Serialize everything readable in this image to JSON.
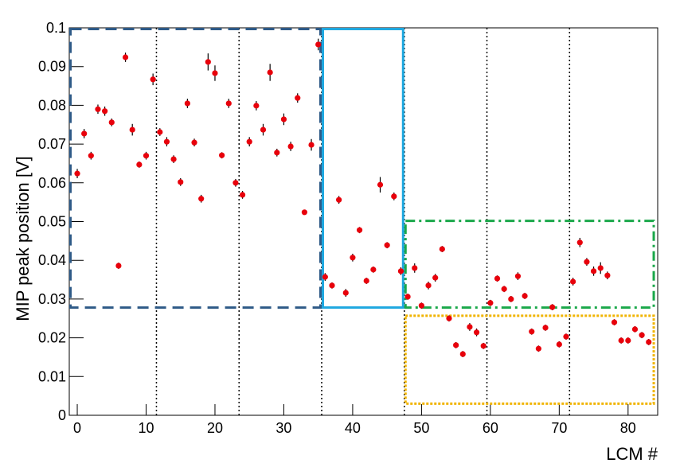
{
  "chart_data": {
    "type": "scatter",
    "x_label": "LCM #",
    "y_label": "MIP peak position   [V]",
    "xlim": [
      -1.16,
      84.3
    ],
    "ylim": [
      0,
      0.1
    ],
    "xticks": [
      0,
      10,
      20,
      30,
      40,
      50,
      60,
      70,
      80
    ],
    "yticks": [
      0,
      0.01,
      0.02,
      0.03,
      0.04,
      0.05,
      0.06,
      0.07,
      0.08,
      0.09,
      0.1
    ],
    "color": "#e8000b",
    "error_color": "#000000",
    "series": [
      {
        "name": "MIP peak",
        "color": "#e8000b",
        "x": [
          0,
          1,
          2,
          3,
          4,
          5,
          6,
          7,
          8,
          9,
          10,
          11,
          12,
          13,
          14,
          15,
          16,
          17,
          18,
          19,
          20,
          21,
          22,
          23,
          24,
          25,
          26,
          27,
          28,
          29,
          30,
          31,
          32,
          33,
          34,
          35,
          36,
          37,
          38,
          39,
          40,
          41,
          42,
          43,
          44,
          45,
          46,
          47,
          48,
          49,
          50,
          51,
          52,
          53,
          54,
          55,
          56,
          57,
          58,
          59,
          60,
          61,
          62,
          63,
          64,
          65,
          66,
          67,
          68,
          69,
          70,
          71,
          72,
          73,
          74,
          75,
          76,
          77,
          78,
          79,
          80,
          81,
          82,
          83
        ],
        "values": [
          0.0624,
          0.0727,
          0.067,
          0.079,
          0.0785,
          0.0756,
          0.0386,
          0.0924,
          0.0737,
          0.0647,
          0.067,
          0.0867,
          0.0731,
          0.0706,
          0.0661,
          0.0602,
          0.0805,
          0.0704,
          0.0559,
          0.0912,
          0.0883,
          0.0671,
          0.0805,
          0.06,
          0.0569,
          0.0706,
          0.0799,
          0.0737,
          0.0885,
          0.0678,
          0.0764,
          0.0694,
          0.0819,
          0.0524,
          0.0698,
          0.0957,
          0.0357,
          0.0335,
          0.0556,
          0.0316,
          0.0407,
          0.0478,
          0.0347,
          0.0376,
          0.0595,
          0.0439,
          0.0565,
          0.0372,
          0.0306,
          0.038,
          0.0283,
          0.0335,
          0.0355,
          0.0429,
          0.025,
          0.0181,
          0.0158,
          0.0228,
          0.0214,
          0.0179,
          0.029,
          0.0353,
          0.0326,
          0.03,
          0.0359,
          0.0308,
          0.0216,
          0.0172,
          0.0226,
          0.0279,
          0.0183,
          0.0203,
          0.0345,
          0.0446,
          0.0396,
          0.0372,
          0.038,
          0.0361,
          0.024,
          0.0193,
          0.0193,
          0.0222,
          0.0207,
          0.0189
        ],
        "errors": [
          0.0012,
          0.0012,
          0.001,
          0.0012,
          0.0012,
          0.001,
          0.0008,
          0.0012,
          0.0015,
          0.0008,
          0.001,
          0.0015,
          0.001,
          0.0012,
          0.001,
          0.001,
          0.0012,
          0.001,
          0.001,
          0.0022,
          0.002,
          0.0008,
          0.0012,
          0.001,
          0.001,
          0.0012,
          0.0012,
          0.0015,
          0.0022,
          0.001,
          0.0015,
          0.0012,
          0.0012,
          0.0006,
          0.0015,
          0.0015,
          0.001,
          0.0008,
          0.001,
          0.001,
          0.001,
          0.0008,
          0.0008,
          0.0008,
          0.002,
          0.0008,
          0.001,
          0.001,
          0.0008,
          0.0012,
          0.0008,
          0.001,
          0.001,
          0.0008,
          0.0008,
          0.0008,
          0.0008,
          0.001,
          0.001,
          0.0008,
          0.0008,
          0.0008,
          0.0008,
          0.0008,
          0.001,
          0.0008,
          0.0008,
          0.0008,
          0.0008,
          0.0008,
          0.0008,
          0.0008,
          0.001,
          0.0012,
          0.001,
          0.0012,
          0.0015,
          0.001,
          0.0008,
          0.0008,
          0.0008,
          0.0008,
          0.0008,
          0.0008
        ]
      }
    ],
    "vlines": [
      11.5,
      23.5,
      35.5,
      47.5,
      59.5,
      71.5
    ],
    "regions": [
      {
        "x": [
          -1.16,
          35.5
        ],
        "y": [
          0.0275,
          0.1
        ],
        "color": "#2e5a87",
        "style": "dashed"
      },
      {
        "x": [
          35.5,
          47.5
        ],
        "y": [
          0.0275,
          0.1
        ],
        "color": "#1fa8e0",
        "style": "solid"
      },
      {
        "x": [
          47.5,
          83.9
        ],
        "y": [
          0.0275,
          0.0505
        ],
        "color": "#1aa84a",
        "style": "dashdot"
      },
      {
        "x": [
          47.5,
          83.9
        ],
        "y": [
          0.0027,
          0.026
        ],
        "color": "#f0b400",
        "style": "dotted"
      }
    ]
  }
}
